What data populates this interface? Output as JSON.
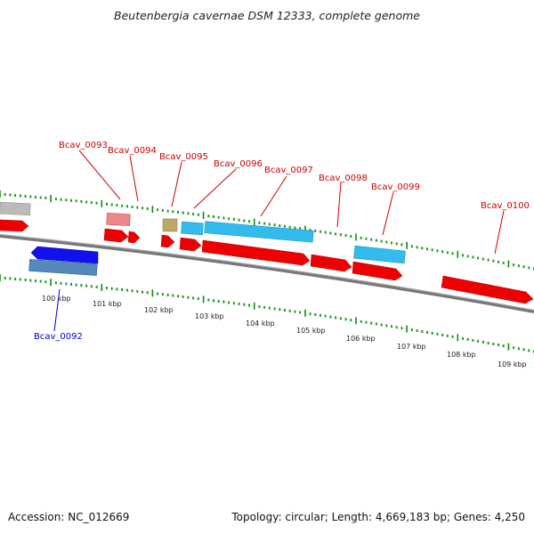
{
  "title": "Beutenbergia cavernae DSM 12333, complete genome",
  "footer": {
    "accession": "Accession: NC_012669",
    "summary": "Topology: circular; Length: 4,669,183 bp; Genes: 4,250"
  },
  "colors": {
    "label_red": "#cc0000",
    "label_blue": "#0000cc",
    "cds": "#ff0000",
    "rna_light_blue": "#33bbee",
    "pseudo_pink": "#ee7777",
    "misc_olive": "#bbaa66",
    "gray_feature": "#aaaaaa",
    "backbone": "#777777",
    "tick_green": "#228822"
  },
  "tick_labels": [
    "100 kbp",
    "101 kbp",
    "102 kbp",
    "103 kbp",
    "104 kbp",
    "105 kbp",
    "106 kbp",
    "107 kbp",
    "108 kbp",
    "109 kbp"
  ],
  "gene_labels": [
    {
      "id": "bcav-0092",
      "text": "Bcav_0092",
      "color": "blue"
    },
    {
      "id": "bcav-0093",
      "text": "Bcav_0093",
      "color": "red"
    },
    {
      "id": "bcav-0094",
      "text": "Bcav_0094",
      "color": "red"
    },
    {
      "id": "bcav-0095",
      "text": "Bcav_0095",
      "color": "red"
    },
    {
      "id": "bcav-0096",
      "text": "Bcav_0096",
      "color": "red"
    },
    {
      "id": "bcav-0097",
      "text": "Bcav_0097",
      "color": "red"
    },
    {
      "id": "bcav-0098",
      "text": "Bcav_0098",
      "color": "red"
    },
    {
      "id": "bcav-0099",
      "text": "Bcav_0099",
      "color": "red"
    },
    {
      "id": "bcav-0100",
      "text": "Bcav_0100",
      "color": "red"
    }
  ]
}
